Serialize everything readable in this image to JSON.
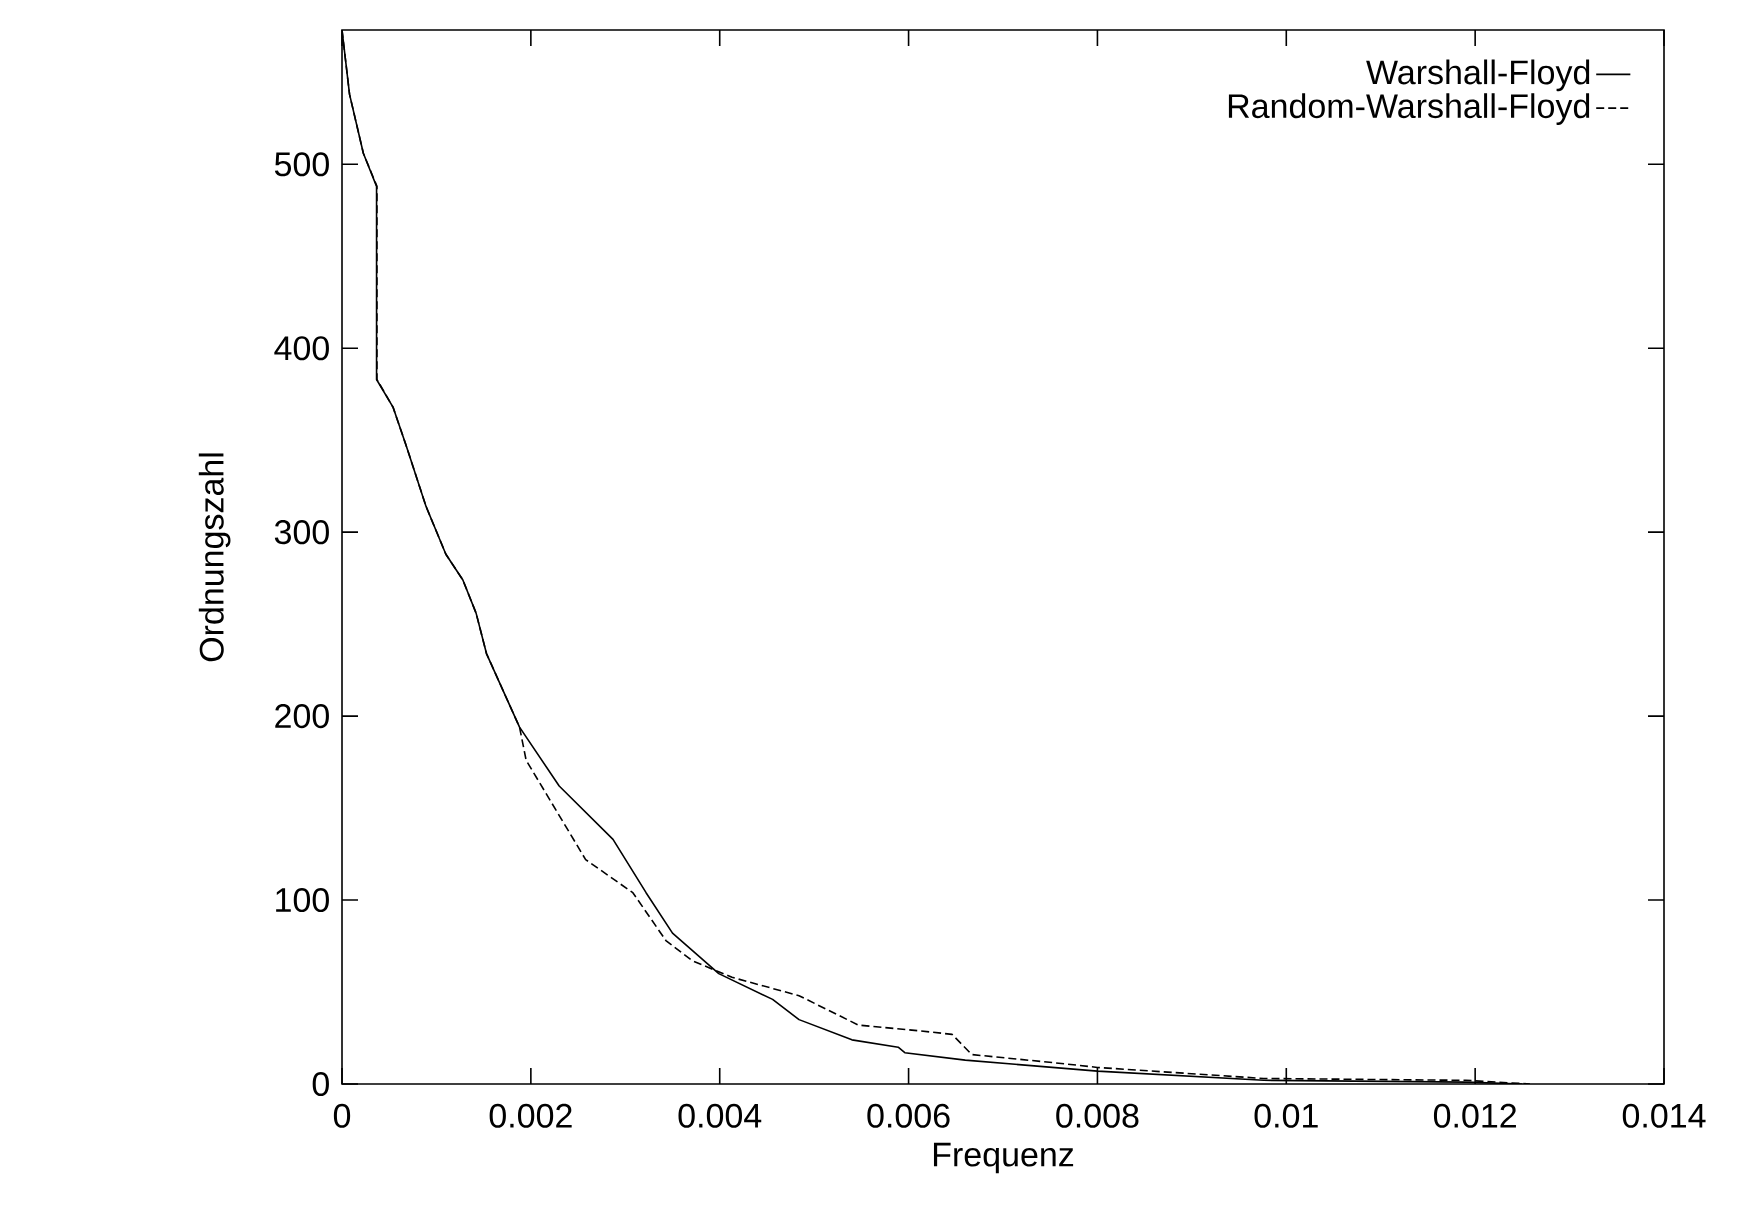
{
  "chart_data": {
    "type": "line",
    "xlabel": "Frequenz",
    "ylabel": "Ordnungszahl",
    "xlim": [
      0,
      0.014
    ],
    "ylim": [
      0,
      573
    ],
    "xticks": [
      0,
      0.002,
      0.004,
      0.006,
      0.008,
      0.01,
      0.012,
      0.014
    ],
    "yticks": [
      0,
      100,
      200,
      300,
      400,
      500
    ],
    "legend": "top right",
    "marker": "none",
    "grid": false,
    "series": [
      {
        "name": "Warshall-Floyd",
        "color": "#000000",
        "line_style": "solid",
        "x": [
          0,
          8e-05,
          0.000226,
          0.000366,
          0.000366,
          0.00054,
          0.00068,
          0.00089,
          0.0011,
          0.00128,
          0.00142,
          0.00153,
          0.00188,
          0.0023,
          0.00287,
          0.00322,
          0.0035,
          0.00399,
          0.00456,
          0.00484,
          0.0054,
          0.00589,
          0.00596,
          0.0066,
          0.008,
          0.00976,
          0.0119,
          0.0125
        ],
        "values": [
          573,
          538,
          506,
          488,
          383,
          368,
          347,
          314,
          288,
          274,
          256,
          234,
          194,
          162,
          133,
          104,
          82,
          60,
          46,
          35,
          24,
          20,
          17,
          13,
          7,
          2,
          1,
          0
        ]
      },
      {
        "name": "Random-Warshall-Floyd",
        "color": "#000000",
        "line_style": "dashed",
        "x": [
          0,
          8e-05,
          0.000226,
          0.00037,
          0.00037,
          0.00054,
          0.00068,
          0.00089,
          0.0011,
          0.00128,
          0.00142,
          0.00153,
          0.00188,
          0.00195,
          0.00258,
          0.00308,
          0.00343,
          0.00371,
          0.00413,
          0.00484,
          0.00547,
          0.0061,
          0.00646,
          0.00667,
          0.00765,
          0.008,
          0.00976,
          0.0119,
          0.01258
        ],
        "values": [
          573,
          538,
          506,
          488,
          383,
          368,
          347,
          314,
          288,
          274,
          256,
          234,
          194,
          176,
          122,
          104,
          78,
          67,
          58,
          48,
          32,
          29,
          27,
          16,
          11,
          9,
          3,
          2,
          0
        ]
      }
    ]
  }
}
